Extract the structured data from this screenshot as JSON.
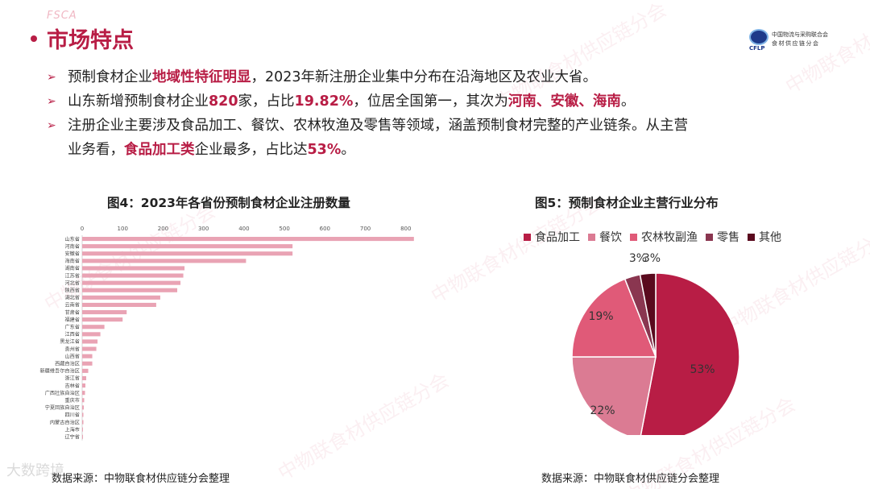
{
  "header": {
    "mark": "FSCA",
    "title": "市场特点",
    "logo_abbr": "CFLP",
    "logo_line1": "中国物流与采购联合会",
    "logo_line2": "食材供应链分会"
  },
  "bullets": [
    {
      "parts": [
        {
          "t": "预制食材企业",
          "hl": false
        },
        {
          "t": "地域性特征明显",
          "hl": true
        },
        {
          "t": "，2023年新注册企业集中分布在沿海地区及农业大省。",
          "hl": false
        }
      ]
    },
    {
      "parts": [
        {
          "t": "山东新增预制食材企业",
          "hl": false
        },
        {
          "t": "820",
          "hl": true
        },
        {
          "t": "家，占比",
          "hl": false
        },
        {
          "t": "19.82%",
          "hl": true
        },
        {
          "t": "，位居全国第一，其次为",
          "hl": false
        },
        {
          "t": "河南、安徽、海南",
          "hl": true
        },
        {
          "t": "。",
          "hl": false
        }
      ]
    },
    {
      "parts": [
        {
          "t": "注册企业主要涉及食品加工、餐饮、农林牧渔及零售等领域，涵盖预制食材完整的产业链条。从主营",
          "hl": false
        }
      ],
      "cont": [
        {
          "t": "业务看，",
          "hl": false
        },
        {
          "t": "食品加工类",
          "hl": true
        },
        {
          "t": "企业最多，占比达",
          "hl": false
        },
        {
          "t": "53%",
          "hl": true
        },
        {
          "t": "。",
          "hl": false
        }
      ]
    }
  ],
  "bar_chart_title": "图4：2023年各省份预制食材企业注册数量",
  "pie_chart_title": "图5：预制食材企业主营行业分布",
  "source_left": "数据来源：中物联食材供应链分会整理",
  "source_right": "数据来源：中物联食材供应链分会整理",
  "watermark": "中物联食材供应链分会",
  "corner_mark": "大数跨境",
  "colors": {
    "accent": "#b81d45",
    "bar": "#e9a3b4",
    "pie": [
      "#b81d45",
      "#db7b93",
      "#e05a78",
      "#8a3650",
      "#5a0a1e"
    ]
  },
  "chart_data": [
    {
      "type": "bar",
      "orientation": "horizontal",
      "title": "图4：2023年各省份预制食材企业注册数量",
      "xlim": [
        0,
        900
      ],
      "xticks": [
        0,
        100,
        200,
        300,
        400,
        500,
        600,
        700,
        800
      ],
      "grid": false,
      "categories": [
        "山东省",
        "河南省",
        "安徽省",
        "海南省",
        "湖南省",
        "江苏省",
        "河北省",
        "陕西省",
        "湖北省",
        "云南省",
        "甘肃省",
        "福建省",
        "广东省",
        "江西省",
        "黑龙江省",
        "贵州省",
        "山西省",
        "西藏自治区",
        "新疆维吾尔自治区",
        "浙江省",
        "吉林省",
        "广西壮族自治区",
        "重庆市",
        "宁夏回族自治区",
        "四川省",
        "内蒙古自治区",
        "上海市",
        "辽宁省"
      ],
      "values": [
        820,
        520,
        520,
        405,
        253,
        250,
        243,
        235,
        193,
        183,
        110,
        100,
        55,
        45,
        38,
        35,
        25,
        25,
        15,
        10,
        8,
        7,
        5,
        4,
        3,
        3,
        2,
        2
      ]
    },
    {
      "type": "pie",
      "title": "图5：预制食材企业主营行业分布",
      "legend": "top",
      "categories": [
        "食品加工",
        "餐饮",
        "农林牧副渔",
        "零售",
        "其他"
      ],
      "values": [
        53,
        22,
        19,
        3,
        3
      ],
      "labels": [
        "53%",
        "22%",
        "19%",
        "3%",
        "3%"
      ]
    }
  ]
}
